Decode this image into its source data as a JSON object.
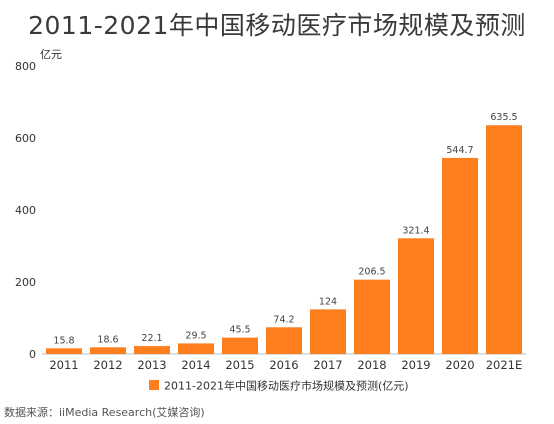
{
  "chart_data": {
    "type": "bar",
    "title": "2011-2021年中国移动医疗市场规模及预测",
    "ylabel": "",
    "unit": "亿元",
    "categories": [
      "2011",
      "2012",
      "2013",
      "2014",
      "2015",
      "2016",
      "2017",
      "2018",
      "2019",
      "2020",
      "2021E"
    ],
    "series": [
      {
        "name": "2011-2021年中国移动医疗市场规模及预测(亿元)",
        "values": [
          15.8,
          18.6,
          22.1,
          29.5,
          45.5,
          74.2,
          124,
          206.5,
          321.4,
          544.7,
          635.5
        ],
        "labels": [
          "15.8",
          "18.6",
          "22.1",
          "29.5",
          "45.5",
          "74.2",
          "124",
          "206.5",
          "321.4",
          "544.7",
          "635.5"
        ],
        "color": "#ff7f1e"
      }
    ],
    "ylim": [
      0,
      800
    ],
    "yticks": [
      0,
      200,
      400,
      600,
      800
    ],
    "grid": false,
    "legend_position": "bottom"
  },
  "source": "数据来源：iiMedia Research(艾媒咨询)"
}
